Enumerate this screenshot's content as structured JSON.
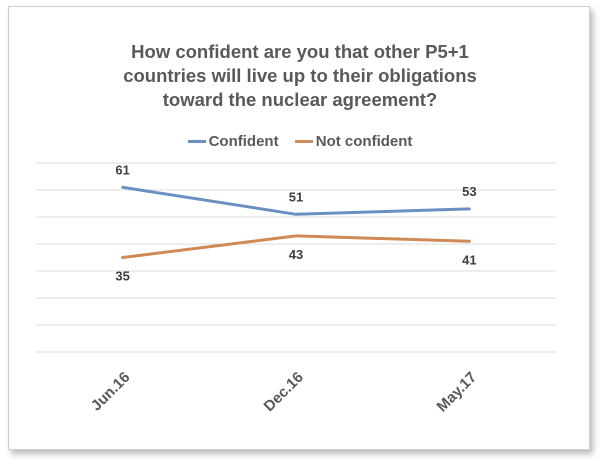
{
  "chart_data": {
    "type": "line",
    "title_lines": [
      "How confident are you that other P5+1",
      "countries will live up to their obligations",
      "toward the nuclear agreement?"
    ],
    "categories": [
      "Jun.16",
      "Dec.16",
      "May.17"
    ],
    "series": [
      {
        "name": "Confident",
        "values": [
          61,
          51,
          53
        ],
        "color": "#6a8fc1"
      },
      {
        "name": "Not confident",
        "values": [
          35,
          43,
          41
        ],
        "color": "#d08a55"
      }
    ],
    "ylim": [
      0,
      70
    ],
    "grid": true,
    "legend_position": "top",
    "gridline_color": "#dcdcdc"
  }
}
